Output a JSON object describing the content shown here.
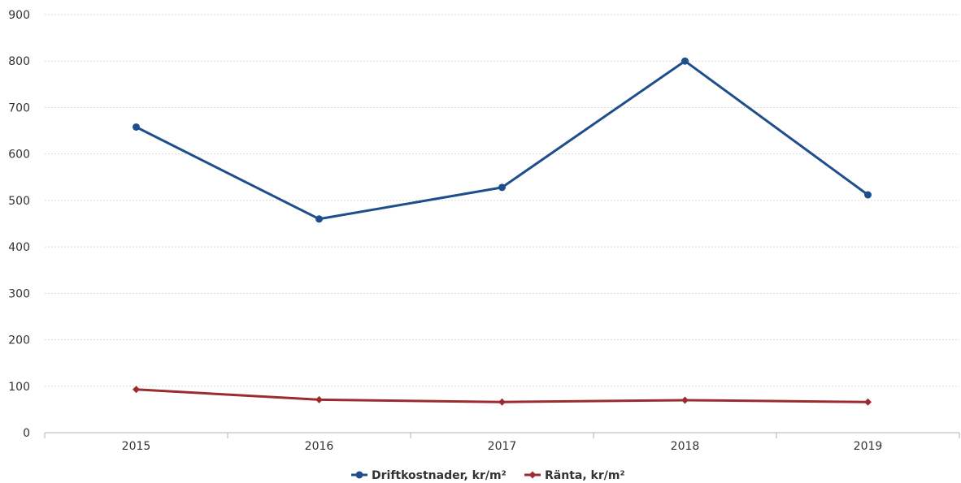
{
  "chart_data": {
    "type": "line",
    "title": "",
    "xlabel": "",
    "ylabel": "",
    "x": [
      "2015",
      "2016",
      "2017",
      "2018",
      "2019"
    ],
    "ylim": [
      0,
      900
    ],
    "yticks": [
      0,
      100,
      200,
      300,
      400,
      500,
      600,
      700,
      800,
      900
    ],
    "grid": true,
    "legend_position": "bottom",
    "series": [
      {
        "name": "Driftkostnader, kr/m²",
        "color": "#1f4e8c",
        "marker": "circle",
        "values": [
          658,
          460,
          528,
          800,
          512
        ]
      },
      {
        "name": "Ränta, kr/m²",
        "color": "#9b2d30",
        "marker": "diamond",
        "values": [
          93,
          71,
          66,
          70,
          66
        ]
      }
    ]
  }
}
